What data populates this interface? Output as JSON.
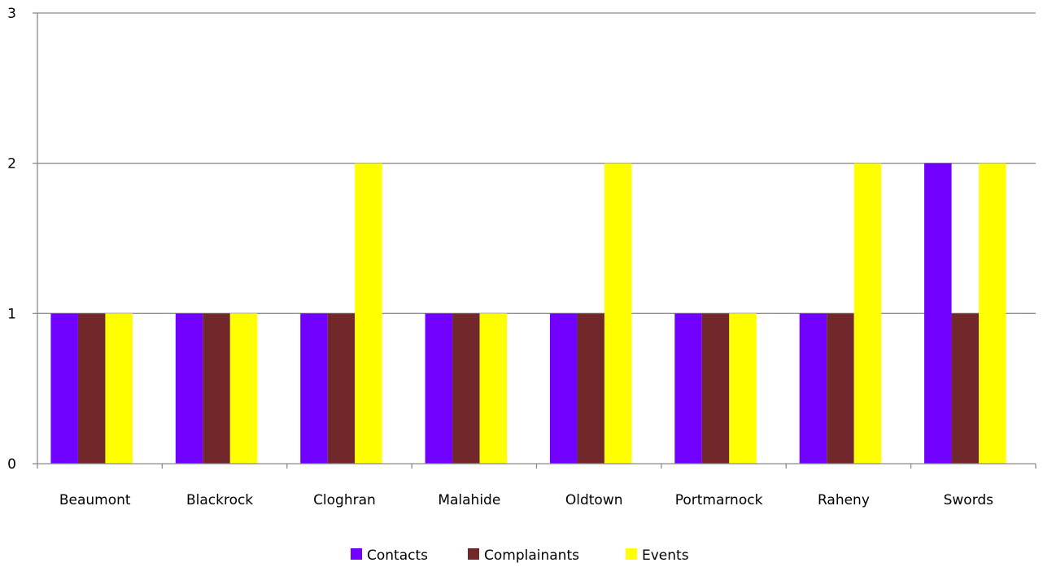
{
  "chart_data": {
    "type": "bar",
    "categories": [
      "Beaumont",
      "Blackrock",
      "Cloghran",
      "Malahide",
      "Oldtown",
      "Portmarnock",
      "Raheny",
      "Swords"
    ],
    "series": [
      {
        "name": "Contacts",
        "color": "#7000ff",
        "values": [
          1,
          1,
          1,
          1,
          1,
          1,
          1,
          2
        ]
      },
      {
        "name": "Complainants",
        "color": "#72282a",
        "values": [
          1,
          1,
          1,
          1,
          1,
          1,
          1,
          1
        ]
      },
      {
        "name": "Events",
        "color": "#ffff00",
        "values": [
          1,
          1,
          2,
          1,
          2,
          1,
          2,
          2
        ]
      }
    ],
    "ylim": [
      0,
      3
    ],
    "yticks": [
      "0",
      "1",
      "2",
      "3"
    ],
    "title": "",
    "xlabel": "",
    "ylabel": "",
    "grid": true,
    "legend": "bottom"
  }
}
